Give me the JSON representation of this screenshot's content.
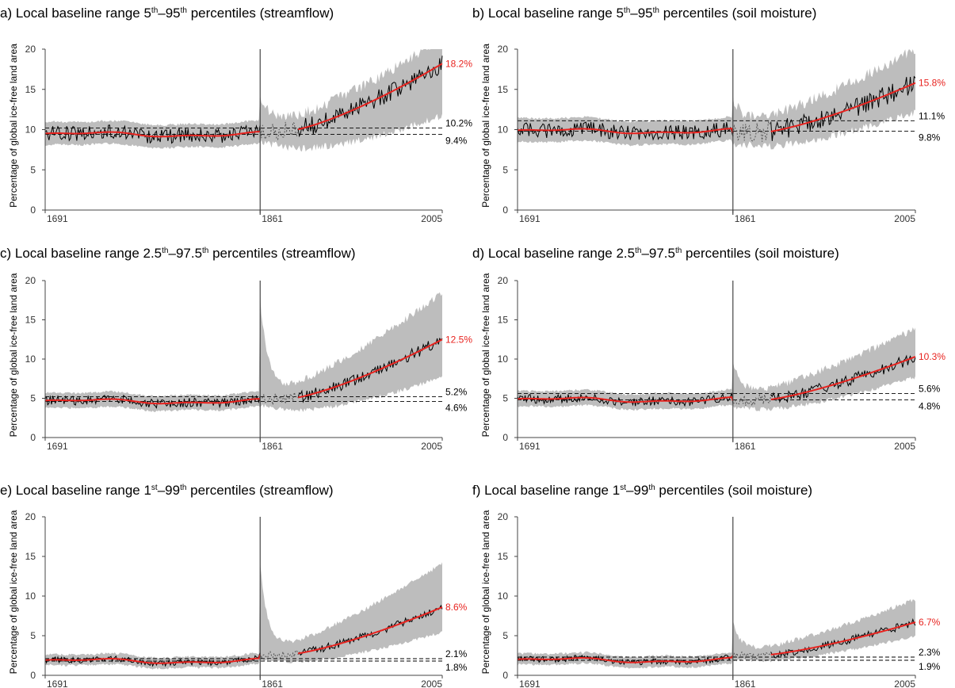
{
  "colors": {
    "observed": "#000000",
    "smoothed": "#e8231f",
    "range": "#bdbdbd",
    "reference_lines": "#000000",
    "red_label": "#e8231f"
  },
  "chart_data": [
    {
      "id": "a",
      "type": "line",
      "title": "a) Local baseline range 5th–95th percentiles (streamflow)",
      "title_parts": [
        "a) Local baseline range 5",
        "th",
        "–95",
        "th",
        " percentiles (streamflow)"
      ],
      "ylabel": "Percentage of global ice-free land area",
      "ylim": [
        0,
        20
      ],
      "yticks": [
        "0",
        "5",
        "10",
        "15",
        "20"
      ],
      "xlim": [
        1691,
        2005
      ],
      "xticks": [
        "1691",
        "1861",
        "2005"
      ],
      "baseline_end": 1861,
      "pre_level": 9.4,
      "post_start": 9.8,
      "end_value": 18.2,
      "end_label": "18.2%",
      "upper_line": 10.2,
      "upper_label": "10.2%",
      "lower_line": 9.4,
      "lower_label": "9.4%",
      "range_end": [
        13.0,
        20.0
      ],
      "spike": 13.0
    },
    {
      "id": "b",
      "type": "line",
      "title": "b) Local baseline range 5th–95th percentiles (soil moisture)",
      "title_parts": [
        "b) Local baseline range 5",
        "th",
        "–95",
        "th",
        " percentiles (soil moisture)"
      ],
      "ylabel": "Percentage of global ice-free land area",
      "ylim": [
        0,
        20
      ],
      "yticks": [
        "0",
        "5",
        "10",
        "15",
        "20"
      ],
      "xlim": [
        1691,
        2005
      ],
      "xticks": [
        "1691",
        "1861",
        "2005"
      ],
      "baseline_end": 1861,
      "pre_level": 9.8,
      "post_start": 9.6,
      "end_value": 15.8,
      "end_label": "15.8%",
      "upper_line": 11.1,
      "upper_label": "11.1%",
      "lower_line": 9.8,
      "lower_label": "9.8%",
      "range_end": [
        13.5,
        18.5
      ],
      "spike": 12.5
    },
    {
      "id": "c",
      "type": "line",
      "title": "c) Local baseline range 2.5th–97.5th percentiles (streamflow)",
      "title_parts": [
        "c) Local baseline range 2.5",
        "th",
        "–97.5",
        "th",
        " percentiles (streamflow)"
      ],
      "ylabel": "Percentage of global ice-free land area",
      "ylim": [
        0,
        20
      ],
      "yticks": [
        "0",
        "5",
        "10",
        "15",
        "20"
      ],
      "xlim": [
        1691,
        2005
      ],
      "xticks": [
        "1691",
        "1861",
        "2005"
      ],
      "baseline_end": 1861,
      "pre_level": 4.6,
      "post_start": 4.9,
      "end_value": 12.5,
      "end_label": "12.5%",
      "upper_line": 5.2,
      "upper_label": "5.2%",
      "lower_line": 4.6,
      "lower_label": "4.6%",
      "range_end": [
        8.5,
        17.5
      ],
      "spike": 17.0
    },
    {
      "id": "d",
      "type": "line",
      "title": "d) Local baseline range 2.5th–97.5th percentiles (soil moisture)",
      "title_parts": [
        "d) Local baseline range 2.5",
        "th",
        "–97.5",
        "th",
        " percentiles (soil moisture)"
      ],
      "ylabel": "Percentage of global ice-free land area",
      "ylim": [
        0,
        20
      ],
      "yticks": [
        "0",
        "5",
        "10",
        "15",
        "20"
      ],
      "xlim": [
        1691,
        2005
      ],
      "xticks": [
        "1691",
        "1861",
        "2005"
      ],
      "baseline_end": 1861,
      "pre_level": 4.8,
      "post_start": 4.7,
      "end_value": 10.3,
      "end_label": "10.3%",
      "upper_line": 5.6,
      "upper_label": "5.6%",
      "lower_line": 4.8,
      "lower_label": "4.8%",
      "range_end": [
        8.5,
        13.0
      ],
      "spike": 9.0
    },
    {
      "id": "e",
      "type": "line",
      "title": "e) Local baseline range 1st–99th percentiles (streamflow)",
      "title_parts": [
        "e) Local baseline range 1",
        "st",
        "–99",
        "th",
        " percentiles (streamflow)"
      ],
      "ylabel": "Percentage of global ice-free land area",
      "ylim": [
        0,
        20
      ],
      "yticks": [
        "0",
        "5",
        "10",
        "15",
        "20"
      ],
      "xlim": [
        1691,
        2005
      ],
      "xticks": [
        "1691",
        "1861",
        "2005"
      ],
      "baseline_end": 1861,
      "pre_level": 1.8,
      "post_start": 2.6,
      "end_value": 8.6,
      "end_label": "8.6%",
      "upper_line": 2.1,
      "upper_label": "2.1%",
      "lower_line": 1.8,
      "lower_label": "1.8%",
      "range_end": [
        6.0,
        13.5
      ],
      "spike": 13.5
    },
    {
      "id": "f",
      "type": "line",
      "title": "f) Local baseline range 1st–99th percentiles (soil moisture)",
      "title_parts": [
        "f) Local baseline range 1",
        "st",
        "–99",
        "th",
        " percentiles (soil moisture)"
      ],
      "ylabel": "Percentage of global ice-free land area",
      "ylim": [
        0,
        20
      ],
      "yticks": [
        "0",
        "5",
        "10",
        "15",
        "20"
      ],
      "xlim": [
        1691,
        2005
      ],
      "xticks": [
        "1691",
        "1861",
        "2005"
      ],
      "baseline_end": 1861,
      "pre_level": 1.9,
      "post_start": 2.5,
      "end_value": 6.7,
      "end_label": "6.7%",
      "upper_line": 2.3,
      "upper_label": "2.3%",
      "lower_line": 1.9,
      "lower_label": "1.9%",
      "range_end": [
        5.5,
        9.0
      ],
      "spike": 6.0
    }
  ]
}
